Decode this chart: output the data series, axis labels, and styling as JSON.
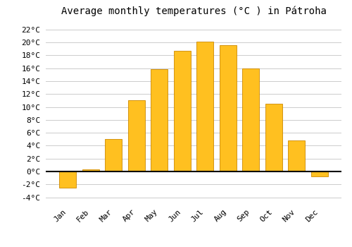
{
  "title": "Average monthly temperatures (°C ) in Pátroha",
  "months": [
    "Jan",
    "Feb",
    "Mar",
    "Apr",
    "May",
    "Jun",
    "Jul",
    "Aug",
    "Sep",
    "Oct",
    "Nov",
    "Dec"
  ],
  "temperatures": [
    -2.5,
    0.3,
    5.0,
    11.0,
    15.8,
    18.7,
    20.1,
    19.6,
    16.0,
    10.5,
    4.8,
    -0.8
  ],
  "bar_color": "#FFC020",
  "bar_edge_color": "#CC8800",
  "background_color": "#ffffff",
  "grid_color": "#cccccc",
  "yticks": [
    -4,
    -2,
    0,
    2,
    4,
    6,
    8,
    10,
    12,
    14,
    16,
    18,
    20,
    22
  ],
  "ylim": [
    -4.8,
    23.5
  ],
  "title_fontsize": 10,
  "tick_fontsize": 8,
  "zero_line_color": "#000000",
  "fig_width": 5.0,
  "fig_height": 3.5,
  "dpi": 100
}
